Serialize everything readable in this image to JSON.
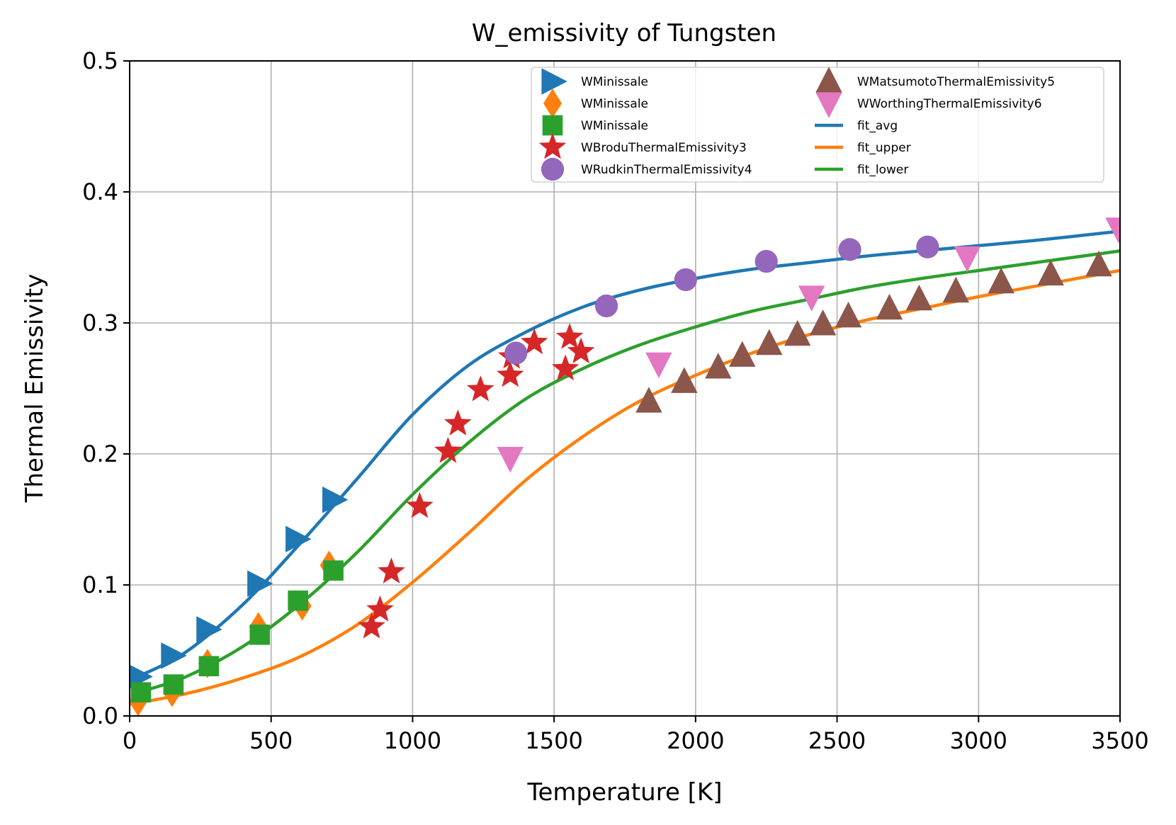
{
  "chart_data": {
    "type": "scatter",
    "title": "W_emissivity of Tungsten",
    "xlabel": "Temperature [K]",
    "ylabel": "Thermal Emissivity",
    "xlim": [
      0,
      3500
    ],
    "ylim": [
      0,
      0.5
    ],
    "xticks": [
      0,
      500,
      1000,
      1500,
      2000,
      2500,
      3000,
      3500
    ],
    "yticks": [
      0.0,
      0.1,
      0.2,
      0.3,
      0.4,
      0.5
    ],
    "xtick_labels": [
      "0",
      "500",
      "1000",
      "1500",
      "2000",
      "2500",
      "3000",
      "3500"
    ],
    "ytick_labels": [
      "0.0",
      "0.1",
      "0.2",
      "0.3",
      "0.4",
      "0.5"
    ],
    "grid": true,
    "legend_position": "top-right",
    "legend_columns": 2,
    "series": [
      {
        "name": "WMinissale",
        "marker": "triangle-right",
        "color": "#1f77b4",
        "points": [
          [
            30,
            0.03
          ],
          [
            150,
            0.046
          ],
          [
            275,
            0.066
          ],
          [
            455,
            0.101
          ],
          [
            590,
            0.135
          ],
          [
            720,
            0.165
          ]
        ]
      },
      {
        "name": "WMinissale",
        "marker": "thin-diamond",
        "color": "#ff7f0e",
        "points": [
          [
            30,
            0.011
          ],
          [
            150,
            0.018
          ],
          [
            275,
            0.04
          ],
          [
            455,
            0.068
          ],
          [
            610,
            0.084
          ],
          [
            705,
            0.115
          ]
        ]
      },
      {
        "name": "WMinissale",
        "marker": "square",
        "color": "#2ca02c",
        "points": [
          [
            40,
            0.018
          ],
          [
            155,
            0.024
          ],
          [
            280,
            0.038
          ],
          [
            460,
            0.062
          ],
          [
            595,
            0.088
          ],
          [
            720,
            0.111
          ]
        ]
      },
      {
        "name": "WBroduThermalEmissivity3",
        "marker": "star",
        "color": "#d62728",
        "points": [
          [
            855,
            0.068
          ],
          [
            885,
            0.081
          ],
          [
            925,
            0.11
          ],
          [
            1025,
            0.16
          ],
          [
            1125,
            0.202
          ],
          [
            1160,
            0.223
          ],
          [
            1240,
            0.249
          ],
          [
            1345,
            0.26
          ],
          [
            1350,
            0.274
          ],
          [
            1430,
            0.285
          ],
          [
            1540,
            0.265
          ],
          [
            1555,
            0.289
          ],
          [
            1595,
            0.278
          ]
        ]
      },
      {
        "name": "WRudkinThermalEmissivity4",
        "marker": "circle",
        "color": "#9467bd",
        "points": [
          [
            1365,
            0.277
          ],
          [
            1685,
            0.313
          ],
          [
            1965,
            0.333
          ],
          [
            2250,
            0.347
          ],
          [
            2545,
            0.356
          ],
          [
            2820,
            0.358
          ]
        ]
      },
      {
        "name": "WMatsumotoThermalEmissivity5",
        "marker": "triangle-up",
        "color": "#8c564b",
        "points": [
          [
            1835,
            0.24
          ],
          [
            1960,
            0.255
          ],
          [
            2080,
            0.266
          ],
          [
            2165,
            0.275
          ],
          [
            2260,
            0.284
          ],
          [
            2360,
            0.291
          ],
          [
            2450,
            0.299
          ],
          [
            2540,
            0.305
          ],
          [
            2685,
            0.311
          ],
          [
            2790,
            0.318
          ],
          [
            2920,
            0.324
          ],
          [
            3080,
            0.331
          ],
          [
            3255,
            0.337
          ],
          [
            3425,
            0.344
          ]
        ]
      },
      {
        "name": "WWorthingThermalEmissivity6",
        "marker": "triangle-down",
        "color": "#e377c2",
        "points": [
          [
            1345,
            0.197
          ],
          [
            1870,
            0.269
          ],
          [
            2410,
            0.32
          ],
          [
            2960,
            0.35
          ],
          [
            3495,
            0.372
          ]
        ]
      },
      {
        "name": "fit_avg",
        "marker": "line",
        "color": "#1f77b4",
        "points": [
          [
            30,
            0.03
          ],
          [
            200,
            0.049
          ],
          [
            400,
            0.085
          ],
          [
            600,
            0.131
          ],
          [
            800,
            0.18
          ],
          [
            1000,
            0.23
          ],
          [
            1200,
            0.268
          ],
          [
            1400,
            0.293
          ],
          [
            1600,
            0.312
          ],
          [
            1800,
            0.325
          ],
          [
            2000,
            0.334
          ],
          [
            2200,
            0.341
          ],
          [
            2400,
            0.346
          ],
          [
            2600,
            0.351
          ],
          [
            2800,
            0.355
          ],
          [
            3000,
            0.359
          ],
          [
            3200,
            0.363
          ],
          [
            3500,
            0.37
          ]
        ]
      },
      {
        "name": "fit_upper",
        "marker": "line",
        "color": "#ff7f0e",
        "points": [
          [
            0,
            0.009
          ],
          [
            200,
            0.017
          ],
          [
            400,
            0.029
          ],
          [
            600,
            0.045
          ],
          [
            800,
            0.069
          ],
          [
            1000,
            0.102
          ],
          [
            1200,
            0.14
          ],
          [
            1400,
            0.18
          ],
          [
            1600,
            0.213
          ],
          [
            1800,
            0.24
          ],
          [
            2000,
            0.26
          ],
          [
            2200,
            0.277
          ],
          [
            2400,
            0.291
          ],
          [
            2600,
            0.302
          ],
          [
            2800,
            0.311
          ],
          [
            3000,
            0.32
          ],
          [
            3200,
            0.328
          ],
          [
            3500,
            0.34
          ]
        ]
      },
      {
        "name": "fit_lower",
        "marker": "line",
        "color": "#2ca02c",
        "points": [
          [
            30,
            0.018
          ],
          [
            200,
            0.03
          ],
          [
            400,
            0.053
          ],
          [
            600,
            0.085
          ],
          [
            800,
            0.124
          ],
          [
            1000,
            0.169
          ],
          [
            1200,
            0.209
          ],
          [
            1400,
            0.242
          ],
          [
            1600,
            0.265
          ],
          [
            1800,
            0.283
          ],
          [
            2000,
            0.297
          ],
          [
            2200,
            0.309
          ],
          [
            2400,
            0.318
          ],
          [
            2600,
            0.327
          ],
          [
            2800,
            0.334
          ],
          [
            3000,
            0.34
          ],
          [
            3200,
            0.346
          ],
          [
            3500,
            0.355
          ]
        ]
      }
    ]
  }
}
